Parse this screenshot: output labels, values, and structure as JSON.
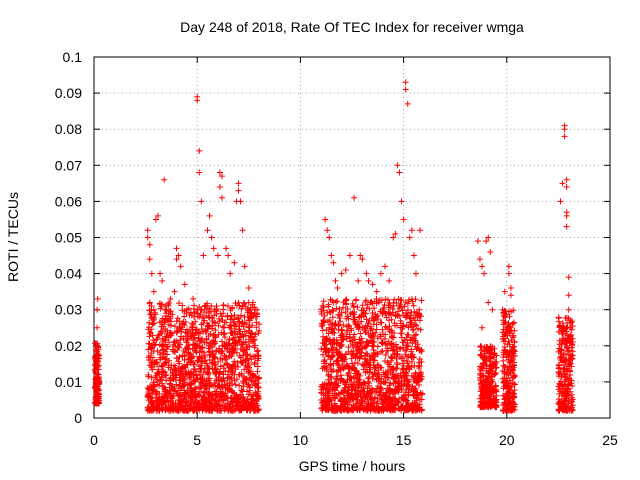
{
  "chart_data": {
    "type": "scatter",
    "title": "Day 248 of 2018, Rate Of TEC Index for receiver wmga",
    "xlabel": "GPS time / hours",
    "ylabel": "ROTI / TECUs",
    "xlim": [
      0,
      25
    ],
    "ylim": [
      0,
      0.1
    ],
    "x_ticks": [
      "0",
      "5",
      "10",
      "15",
      "20",
      "25"
    ],
    "y_ticks": [
      "0",
      "0.01",
      "0.02",
      "0.03",
      "0.04",
      "0.05",
      "0.06",
      "0.07",
      "0.08",
      "0.09",
      "0.1"
    ],
    "grid": true,
    "marker": "+",
    "colors": {
      "series": "#ff0000",
      "grid": "#a0a0a0"
    },
    "series": [
      {
        "points": [
          [
            0.1,
            0.006
          ],
          [
            0.1,
            0.01
          ],
          [
            0.1,
            0.016
          ],
          [
            0.1,
            0.02
          ],
          [
            0.15,
            0.025
          ],
          [
            0.15,
            0.03
          ],
          [
            0.18,
            0.033
          ],
          [
            2.6,
            0.05
          ],
          [
            2.6,
            0.052
          ],
          [
            2.7,
            0.048
          ],
          [
            2.7,
            0.044
          ],
          [
            2.8,
            0.04
          ],
          [
            2.9,
            0.035
          ],
          [
            2.9,
            0.03
          ],
          [
            3.0,
            0.055
          ],
          [
            3.1,
            0.056
          ],
          [
            3.2,
            0.04
          ],
          [
            3.3,
            0.038
          ],
          [
            3.4,
            0.066
          ],
          [
            3.5,
            0.03
          ],
          [
            3.7,
            0.033
          ],
          [
            3.9,
            0.035
          ],
          [
            4.0,
            0.044
          ],
          [
            4.0,
            0.047
          ],
          [
            4.1,
            0.045
          ],
          [
            4.2,
            0.042
          ],
          [
            4.4,
            0.037
          ],
          [
            4.5,
            0.03
          ],
          [
            4.8,
            0.033
          ],
          [
            5.0,
            0.089
          ],
          [
            5.0,
            0.088
          ],
          [
            5.1,
            0.074
          ],
          [
            5.1,
            0.068
          ],
          [
            5.2,
            0.06
          ],
          [
            5.3,
            0.045
          ],
          [
            5.5,
            0.052
          ],
          [
            5.6,
            0.056
          ],
          [
            5.7,
            0.05
          ],
          [
            5.8,
            0.047
          ],
          [
            6.0,
            0.045
          ],
          [
            6.1,
            0.068
          ],
          [
            6.2,
            0.067
          ],
          [
            6.1,
            0.064
          ],
          [
            6.2,
            0.061
          ],
          [
            6.4,
            0.047
          ],
          [
            6.5,
            0.045
          ],
          [
            6.6,
            0.04
          ],
          [
            6.8,
            0.043
          ],
          [
            6.9,
            0.06
          ],
          [
            7.0,
            0.065
          ],
          [
            7.0,
            0.063
          ],
          [
            7.1,
            0.06
          ],
          [
            7.2,
            0.052
          ],
          [
            7.3,
            0.042
          ],
          [
            7.5,
            0.036
          ],
          [
            7.7,
            0.032
          ],
          [
            7.9,
            0.03
          ],
          [
            8.0,
            0.026
          ],
          [
            11.2,
            0.055
          ],
          [
            11.3,
            0.052
          ],
          [
            11.4,
            0.05
          ],
          [
            11.5,
            0.045
          ],
          [
            11.6,
            0.043
          ],
          [
            11.7,
            0.038
          ],
          [
            11.8,
            0.036
          ],
          [
            12.0,
            0.04
          ],
          [
            12.2,
            0.041
          ],
          [
            12.4,
            0.045
          ],
          [
            12.6,
            0.061
          ],
          [
            12.8,
            0.038
          ],
          [
            12.9,
            0.045
          ],
          [
            13.0,
            0.044
          ],
          [
            13.2,
            0.04
          ],
          [
            13.3,
            0.038
          ],
          [
            13.5,
            0.037
          ],
          [
            13.7,
            0.035
          ],
          [
            13.9,
            0.04
          ],
          [
            14.1,
            0.042
          ],
          [
            14.3,
            0.038
          ],
          [
            14.5,
            0.05
          ],
          [
            14.6,
            0.051
          ],
          [
            14.7,
            0.07
          ],
          [
            14.8,
            0.068
          ],
          [
            14.9,
            0.06
          ],
          [
            15.0,
            0.055
          ],
          [
            15.1,
            0.093
          ],
          [
            15.1,
            0.091
          ],
          [
            15.2,
            0.087
          ],
          [
            15.3,
            0.05
          ],
          [
            15.4,
            0.052
          ],
          [
            15.5,
            0.045
          ],
          [
            15.6,
            0.04
          ],
          [
            15.8,
            0.052
          ],
          [
            18.6,
            0.049
          ],
          [
            18.7,
            0.044
          ],
          [
            18.8,
            0.042
          ],
          [
            18.9,
            0.04
          ],
          [
            19.0,
            0.049
          ],
          [
            19.1,
            0.05
          ],
          [
            19.2,
            0.046
          ],
          [
            18.8,
            0.025
          ],
          [
            19.1,
            0.032
          ],
          [
            19.3,
            0.03
          ],
          [
            19.8,
            0.03
          ],
          [
            19.9,
            0.035
          ],
          [
            20.1,
            0.04
          ],
          [
            20.1,
            0.042
          ],
          [
            20.2,
            0.036
          ],
          [
            20.2,
            0.034
          ],
          [
            22.6,
            0.06
          ],
          [
            22.7,
            0.065
          ],
          [
            22.8,
            0.081
          ],
          [
            22.8,
            0.08
          ],
          [
            22.8,
            0.078
          ],
          [
            22.9,
            0.066
          ],
          [
            22.9,
            0.064
          ],
          [
            22.9,
            0.057
          ],
          [
            22.9,
            0.056
          ],
          [
            22.9,
            0.053
          ],
          [
            23.0,
            0.039
          ],
          [
            23.0,
            0.034
          ],
          [
            23.0,
            0.03
          ]
        ]
      }
    ],
    "dense_clusters": [
      {
        "x_range": [
          0.05,
          0.25
        ],
        "y_range": [
          0.004,
          0.021
        ]
      },
      {
        "x_range": [
          2.6,
          8.0
        ],
        "y_range": [
          0.002,
          0.032
        ]
      },
      {
        "x_range": [
          11.0,
          15.9
        ],
        "y_range": [
          0.002,
          0.033
        ]
      },
      {
        "x_range": [
          18.7,
          19.5
        ],
        "y_range": [
          0.003,
          0.02
        ]
      },
      {
        "x_range": [
          19.8,
          20.4
        ],
        "y_range": [
          0.002,
          0.03
        ]
      },
      {
        "x_range": [
          22.5,
          23.2
        ],
        "y_range": [
          0.002,
          0.028
        ]
      }
    ]
  }
}
